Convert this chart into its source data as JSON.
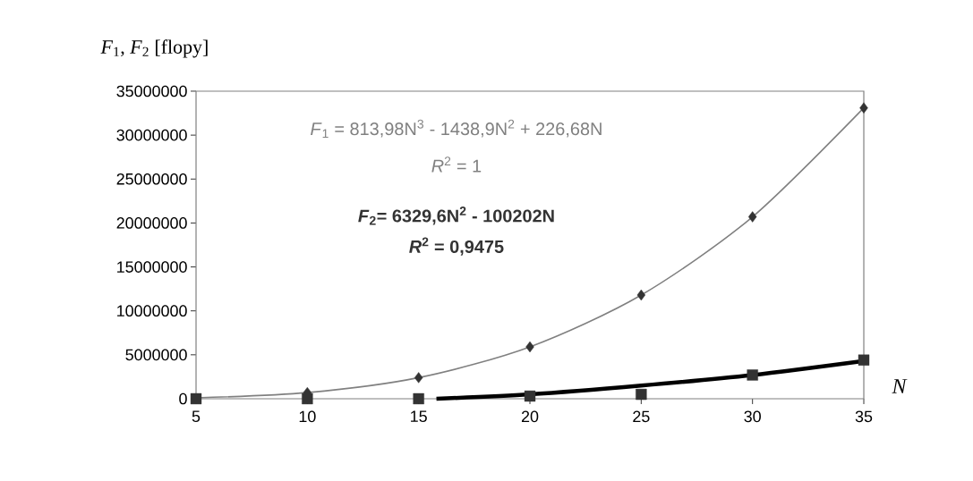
{
  "chart_data": {
    "type": "scatter",
    "xlabel": "*N*",
    "ylabel": "*F*$_{1}$, *F*$_{2}$ [flopy]",
    "xlim": [
      5,
      35
    ],
    "xticks": [
      5,
      10,
      15,
      20,
      25,
      30,
      35
    ],
    "ylim": [
      0,
      35000000
    ],
    "yticks": [
      0,
      5000000,
      10000000,
      15000000,
      20000000,
      25000000,
      30000000,
      35000000
    ],
    "x": [
      5,
      10,
      15,
      20,
      25,
      30,
      35
    ],
    "series": [
      {
        "type": "line",
        "color": "#808080",
        "marker": "none",
        "values": [
          100000,
          700000,
          2400000,
          5900000,
          11800000,
          20700000,
          33100000
        ]
      },
      {
        "color": "#333333",
        "marker": "diamond",
        "values": [
          null,
          700000,
          2400000,
          5900000,
          11800000,
          20700000,
          33100000
        ]
      },
      {
        "type": "line",
        "color": "#000000",
        "marker": "none",
        "x": [
          15.8,
          20,
          25,
          30,
          35
        ],
        "values": [
          0,
          500000,
          1500000,
          2700000,
          4300000
        ]
      },
      {
        "color": "#333333",
        "marker": "square",
        "values": [
          0,
          0,
          0,
          300000,
          500000,
          2700000,
          4400000
        ]
      }
    ],
    "annotations": [
      "*F*$_{1}$ = 813,98N$^{3}$ - 1438,9N$^{2}$ + 226,68N",
      "*R*$^{2}$ = 1",
      "*F*$_{2}$= 6329,6N$^{2}$ - 100202N",
      "*R*$^{2}$ = 0,9475"
    ],
    "grid": false
  }
}
